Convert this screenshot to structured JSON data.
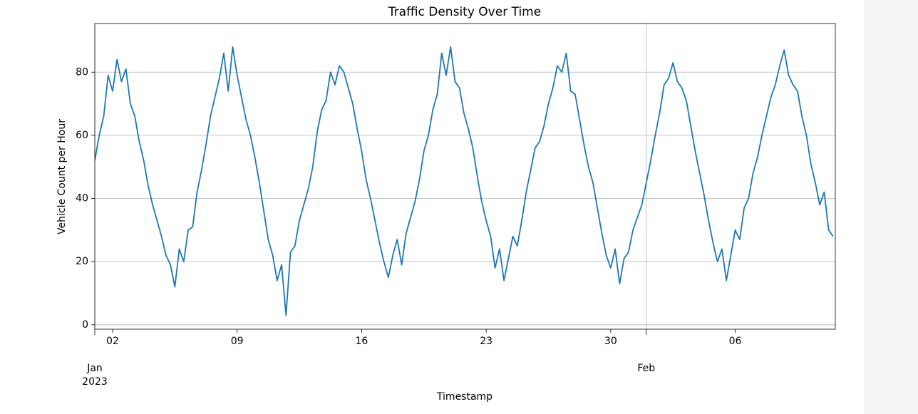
{
  "chart_data": {
    "type": "line",
    "title": "Traffic Density Over Time",
    "xlabel": "Timestamp",
    "ylabel": "Vehicle Count per Hour",
    "color": "#1f77b4",
    "xlim": [
      "2023-01-01T00:00",
      "2023-02-11T15:00"
    ],
    "ylim": [
      -1.4,
      95.4
    ],
    "yticks": [
      0,
      20,
      40,
      60,
      80
    ],
    "xticks": [
      {
        "value": "2023-01-02T00:00",
        "label": "02"
      },
      {
        "value": "2023-01-09T00:00",
        "label": "09"
      },
      {
        "value": "2023-01-16T00:00",
        "label": "16"
      },
      {
        "value": "2023-01-23T00:00",
        "label": "23"
      },
      {
        "value": "2023-01-30T00:00",
        "label": "30"
      },
      {
        "value": "2023-02-06T00:00",
        "label": "06"
      }
    ],
    "month_ticks": [
      {
        "value": "2023-01-01T00:00",
        "label": "Jan",
        "sublabel": "2023"
      },
      {
        "value": "2023-02-01T00:00",
        "label": "Feb"
      }
    ],
    "grid": true,
    "x": [
      "2023-01-01T00:00",
      "2023-01-01T06:00",
      "2023-01-01T12:00",
      "2023-01-01T18:00",
      "2023-01-02T00:00",
      "2023-01-02T06:00",
      "2023-01-02T12:00",
      "2023-01-02T18:00",
      "2023-01-03T00:00",
      "2023-01-03T06:00",
      "2023-01-03T12:00",
      "2023-01-03T18:00",
      "2023-01-04T00:00",
      "2023-01-04T06:00",
      "2023-01-04T12:00",
      "2023-01-04T18:00",
      "2023-01-05T00:00",
      "2023-01-05T06:00",
      "2023-01-05T12:00",
      "2023-01-05T18:00",
      "2023-01-06T00:00",
      "2023-01-06T06:00",
      "2023-01-06T12:00",
      "2023-01-06T18:00",
      "2023-01-07T00:00",
      "2023-01-07T06:00",
      "2023-01-07T12:00",
      "2023-01-07T18:00",
      "2023-01-08T00:00",
      "2023-01-08T06:00",
      "2023-01-08T12:00",
      "2023-01-08T18:00",
      "2023-01-09T00:00",
      "2023-01-09T06:00",
      "2023-01-09T12:00",
      "2023-01-09T18:00",
      "2023-01-10T00:00",
      "2023-01-10T06:00",
      "2023-01-10T12:00",
      "2023-01-10T18:00",
      "2023-01-11T00:00",
      "2023-01-11T06:00",
      "2023-01-11T12:00",
      "2023-01-11T18:00",
      "2023-01-12T00:00",
      "2023-01-12T06:00",
      "2023-01-12T12:00",
      "2023-01-12T18:00",
      "2023-01-13T00:00",
      "2023-01-13T06:00",
      "2023-01-13T12:00",
      "2023-01-13T18:00",
      "2023-01-14T00:00",
      "2023-01-14T06:00",
      "2023-01-14T12:00",
      "2023-01-14T18:00",
      "2023-01-15T00:00",
      "2023-01-15T06:00",
      "2023-01-15T12:00",
      "2023-01-15T18:00",
      "2023-01-16T00:00",
      "2023-01-16T06:00",
      "2023-01-16T12:00",
      "2023-01-16T18:00",
      "2023-01-17T00:00",
      "2023-01-17T06:00",
      "2023-01-17T12:00",
      "2023-01-17T18:00",
      "2023-01-18T00:00",
      "2023-01-18T06:00",
      "2023-01-18T12:00",
      "2023-01-18T18:00",
      "2023-01-19T00:00",
      "2023-01-19T06:00",
      "2023-01-19T12:00",
      "2023-01-19T18:00",
      "2023-01-20T00:00",
      "2023-01-20T06:00",
      "2023-01-20T12:00",
      "2023-01-20T18:00",
      "2023-01-21T00:00",
      "2023-01-21T06:00",
      "2023-01-21T12:00",
      "2023-01-21T18:00",
      "2023-01-22T00:00",
      "2023-01-22T06:00",
      "2023-01-22T12:00",
      "2023-01-22T18:00",
      "2023-01-23T00:00",
      "2023-01-23T06:00",
      "2023-01-23T12:00",
      "2023-01-23T18:00",
      "2023-01-24T00:00",
      "2023-01-24T06:00",
      "2023-01-24T12:00",
      "2023-01-24T18:00",
      "2023-01-25T00:00",
      "2023-01-25T06:00",
      "2023-01-25T12:00",
      "2023-01-25T18:00",
      "2023-01-26T00:00",
      "2023-01-26T06:00",
      "2023-01-26T12:00",
      "2023-01-26T18:00",
      "2023-01-27T00:00",
      "2023-01-27T06:00",
      "2023-01-27T12:00",
      "2023-01-27T18:00",
      "2023-01-28T00:00",
      "2023-01-28T06:00",
      "2023-01-28T12:00",
      "2023-01-28T18:00",
      "2023-01-29T00:00",
      "2023-01-29T06:00",
      "2023-01-29T12:00",
      "2023-01-29T18:00",
      "2023-01-30T00:00",
      "2023-01-30T06:00",
      "2023-01-30T12:00",
      "2023-01-30T18:00",
      "2023-01-31T00:00",
      "2023-01-31T06:00",
      "2023-01-31T12:00",
      "2023-01-31T18:00",
      "2023-02-01T00:00",
      "2023-02-01T06:00",
      "2023-02-01T12:00",
      "2023-02-01T18:00",
      "2023-02-02T00:00",
      "2023-02-02T06:00",
      "2023-02-02T12:00",
      "2023-02-02T18:00",
      "2023-02-03T00:00",
      "2023-02-03T06:00",
      "2023-02-03T12:00",
      "2023-02-03T18:00",
      "2023-02-04T00:00",
      "2023-02-04T06:00",
      "2023-02-04T12:00",
      "2023-02-04T18:00",
      "2023-02-05T00:00",
      "2023-02-05T06:00",
      "2023-02-05T12:00",
      "2023-02-05T18:00",
      "2023-02-06T00:00",
      "2023-02-06T06:00",
      "2023-02-06T12:00",
      "2023-02-06T18:00",
      "2023-02-07T00:00",
      "2023-02-07T06:00",
      "2023-02-07T12:00",
      "2023-02-07T18:00",
      "2023-02-08T00:00",
      "2023-02-08T06:00",
      "2023-02-08T12:00",
      "2023-02-08T18:00",
      "2023-02-09T00:00",
      "2023-02-09T06:00",
      "2023-02-09T12:00",
      "2023-02-09T18:00",
      "2023-02-10T00:00",
      "2023-02-10T06:00",
      "2023-02-10T12:00",
      "2023-02-10T18:00",
      "2023-02-11T00:00",
      "2023-02-11T06:00",
      "2023-02-11T12:00"
    ],
    "values": [
      52,
      60,
      66,
      79,
      74,
      84,
      77,
      81,
      70,
      66,
      58,
      52,
      44,
      38,
      33,
      28,
      22,
      19,
      12,
      24,
      20,
      30,
      31,
      42,
      49,
      57,
      66,
      72,
      78,
      86,
      74,
      88,
      79,
      72,
      65,
      60,
      53,
      45,
      36,
      27,
      22,
      14,
      19,
      3,
      23,
      25,
      33,
      38,
      43,
      50,
      61,
      68,
      71,
      80,
      76,
      82,
      80,
      75,
      70,
      62,
      55,
      46,
      40,
      33,
      26,
      20,
      15,
      22,
      27,
      19,
      29,
      34,
      39,
      46,
      55,
      60,
      68,
      73,
      86,
      79,
      88,
      77,
      75,
      67,
      62,
      56,
      47,
      39,
      33,
      28,
      18,
      24,
      14,
      21,
      28,
      25,
      33,
      42,
      49,
      56,
      58,
      63,
      70,
      75,
      82,
      80,
      86,
      74,
      73,
      65,
      57,
      50,
      45,
      37,
      29,
      22,
      18,
      24,
      13,
      21,
      23,
      30,
      34,
      38,
      45,
      52,
      60,
      67,
      76,
      78,
      83,
      77,
      75,
      71,
      63,
      55,
      48,
      41,
      33,
      26,
      20,
      24,
      14,
      22,
      30,
      27,
      37,
      40,
      48,
      53,
      60,
      66,
      72,
      76,
      82,
      87,
      79,
      76,
      74,
      66,
      60,
      51,
      45,
      38,
      42,
      30,
      28
    ]
  }
}
